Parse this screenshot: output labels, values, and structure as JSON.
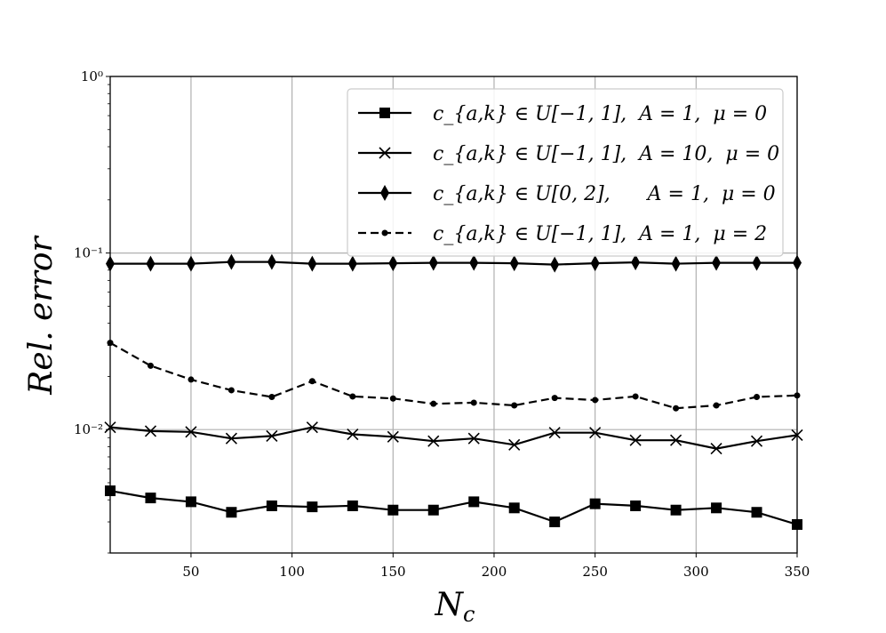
{
  "chart_data": {
    "type": "line",
    "xlabel": "N_c",
    "ylabel": "Rel. error",
    "xlim": [
      10,
      350
    ],
    "ylim": [
      0.002,
      1
    ],
    "yscale": "log",
    "grid": true,
    "legend_position": "top-right",
    "x_ticks": [
      50,
      100,
      150,
      200,
      250,
      300,
      350
    ],
    "x_tick_labels": [
      "50",
      "100",
      "150",
      "200",
      "250",
      "300",
      "350"
    ],
    "y_ticks": [
      0.01,
      0.1,
      1
    ],
    "y_tick_labels": [
      "10⁻²",
      "10⁻¹",
      "10⁰"
    ],
    "x": [
      10,
      30,
      50,
      70,
      90,
      110,
      130,
      150,
      170,
      190,
      210,
      230,
      250,
      270,
      290,
      310,
      330,
      350
    ],
    "series": [
      {
        "name": "c_{a,k} ∈ U[−1, 1],  A = 1,  μ = 0",
        "marker": "square",
        "style": "solid",
        "values": [
          0.0045,
          0.0041,
          0.0039,
          0.0034,
          0.0037,
          0.00365,
          0.0037,
          0.0035,
          0.0035,
          0.0039,
          0.0036,
          0.003,
          0.0038,
          0.0037,
          0.0035,
          0.0036,
          0.0034,
          0.0029
        ]
      },
      {
        "name": "c_{a,k} ∈ U[−1, 1],  A = 10,  μ = 0",
        "marker": "x",
        "style": "solid",
        "values": [
          0.0103,
          0.0098,
          0.0097,
          0.0089,
          0.0092,
          0.0103,
          0.0094,
          0.0091,
          0.0086,
          0.0089,
          0.0082,
          0.0096,
          0.0096,
          0.0087,
          0.0087,
          0.0078,
          0.0086,
          0.0093
        ]
      },
      {
        "name": "c_{a,k} ∈ U[0, 2],      A = 1,  μ = 0",
        "marker": "diamond",
        "style": "solid",
        "values": [
          0.087,
          0.087,
          0.087,
          0.089,
          0.089,
          0.087,
          0.087,
          0.0875,
          0.088,
          0.088,
          0.0875,
          0.086,
          0.0875,
          0.0885,
          0.087,
          0.088,
          0.088,
          0.088
        ]
      },
      {
        "name": "c_{a,k} ∈ U[−1, 1],  A = 1,  μ = 2",
        "marker": "dot",
        "style": "dashed",
        "values": [
          0.031,
          0.023,
          0.0192,
          0.0167,
          0.0153,
          0.0188,
          0.0154,
          0.015,
          0.014,
          0.0142,
          0.0137,
          0.0151,
          0.0147,
          0.0154,
          0.0132,
          0.0137,
          0.0153,
          0.0156
        ]
      }
    ]
  }
}
